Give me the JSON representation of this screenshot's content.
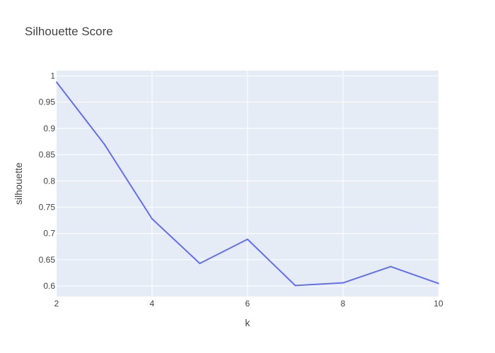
{
  "chart_data": {
    "type": "line",
    "title": "Silhouette Score",
    "xlabel": "k",
    "ylabel": "silhouette",
    "x": [
      2,
      3,
      4,
      5,
      6,
      7,
      8,
      9,
      10
    ],
    "series": [
      {
        "values": [
          0.988,
          0.87,
          0.728,
          0.643,
          0.689,
          0.601,
          0.606,
          0.637,
          0.605
        ]
      }
    ],
    "xlim": [
      2,
      10
    ],
    "ylim": [
      0.58,
      1.01
    ],
    "x_ticks": [
      "2",
      "4",
      "6",
      "8",
      "10"
    ],
    "y_ticks": [
      "0.6",
      "0.65",
      "0.7",
      "0.75",
      "0.8",
      "0.85",
      "0.9",
      "0.95",
      "1"
    ],
    "grid": true,
    "colors": {
      "line": "#636efa",
      "plot_bg": "#e5ecf6",
      "grid": "#ffffff"
    }
  }
}
